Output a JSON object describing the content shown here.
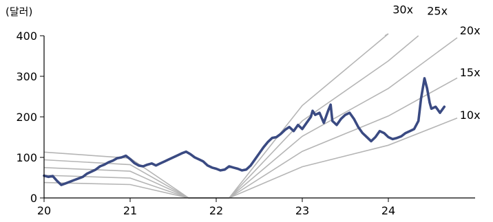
{
  "chart_data": {
    "type": "line",
    "unit_label": "(달러)",
    "xlim": [
      2020,
      2024.75
    ],
    "ylim": [
      0,
      400
    ],
    "x_ticks": [
      {
        "value": 2020,
        "label": "20"
      },
      {
        "value": 2021,
        "label": "21"
      },
      {
        "value": 2022,
        "label": "22"
      },
      {
        "value": 2023,
        "label": "23"
      },
      {
        "value": 2024,
        "label": "24"
      }
    ],
    "y_ticks": [
      0,
      100,
      200,
      300,
      400
    ],
    "colors": {
      "price": "#3a4a82",
      "band": "#b5b5b5",
      "axis": "#000000"
    },
    "bands": [
      {
        "name": "10x",
        "points": [
          [
            2020,
            38
          ],
          [
            2021,
            33
          ],
          [
            2021.68,
            0
          ],
          [
            2022.15,
            0
          ],
          [
            2023,
            77
          ],
          [
            2024,
            130
          ],
          [
            2024.8,
            197
          ]
        ]
      },
      {
        "name": "15x",
        "points": [
          [
            2020,
            56
          ],
          [
            2021,
            49
          ],
          [
            2021.68,
            0
          ],
          [
            2022.15,
            0
          ],
          [
            2023,
            115
          ],
          [
            2024,
            202
          ],
          [
            2024.8,
            296
          ]
        ]
      },
      {
        "name": "20x",
        "points": [
          [
            2020,
            75
          ],
          [
            2021,
            66
          ],
          [
            2021.68,
            0
          ],
          [
            2022.15,
            0
          ],
          [
            2023,
            152
          ],
          [
            2024,
            270
          ],
          [
            2024.8,
            395
          ]
        ]
      },
      {
        "name": "25x",
        "points": [
          [
            2020,
            94
          ],
          [
            2021,
            82
          ],
          [
            2021.68,
            0
          ],
          [
            2022.15,
            0
          ],
          [
            2023,
            190
          ],
          [
            2024,
            338
          ],
          [
            2024.35,
            400
          ]
        ]
      },
      {
        "name": "30x",
        "points": [
          [
            2020,
            113
          ],
          [
            2021,
            98
          ],
          [
            2021.68,
            0
          ],
          [
            2022.15,
            0
          ],
          [
            2023,
            228
          ],
          [
            2024,
            405
          ],
          [
            2023.96,
            400
          ]
        ]
      }
    ],
    "band_labels": [
      {
        "text": "30x",
        "x": 2024.05,
        "y": 455
      },
      {
        "text": "25x",
        "x": 2024.45,
        "y": 452
      },
      {
        "text": "20x",
        "x": 2024.83,
        "y": 403
      },
      {
        "text": "15x",
        "x": 2024.83,
        "y": 300
      },
      {
        "text": "10x",
        "x": 2024.83,
        "y": 195
      }
    ],
    "series": [
      {
        "name": "price",
        "x": [
          2020.0,
          2020.05,
          2020.1,
          2020.15,
          2020.2,
          2020.25,
          2020.3,
          2020.35,
          2020.4,
          2020.45,
          2020.5,
          2020.55,
          2020.6,
          2020.65,
          2020.7,
          2020.75,
          2020.8,
          2020.85,
          2020.9,
          2020.95,
          2021.0,
          2021.05,
          2021.1,
          2021.15,
          2021.2,
          2021.25,
          2021.3,
          2021.35,
          2021.4,
          2021.45,
          2021.5,
          2021.55,
          2021.6,
          2021.65,
          2021.7,
          2021.75,
          2021.8,
          2021.85,
          2021.9,
          2021.95,
          2022.0,
          2022.05,
          2022.1,
          2022.15,
          2022.2,
          2022.25,
          2022.3,
          2022.35,
          2022.4,
          2022.45,
          2022.5,
          2022.55,
          2022.6,
          2022.65,
          2022.7,
          2022.75,
          2022.8,
          2022.85,
          2022.9,
          2022.95,
          2023.0,
          2023.05,
          2023.1,
          2023.12,
          2023.15,
          2023.2,
          2023.25,
          2023.3,
          2023.33,
          2023.35,
          2023.4,
          2023.45,
          2023.5,
          2023.55,
          2023.6,
          2023.65,
          2023.7,
          2023.75,
          2023.8,
          2023.85,
          2023.9,
          2023.95,
          2024.0,
          2024.05,
          2024.1,
          2024.15,
          2024.2,
          2024.25,
          2024.3,
          2024.35,
          2024.38,
          2024.42,
          2024.45,
          2024.48,
          2024.5,
          2024.55,
          2024.6,
          2024.65
        ],
        "y": [
          55,
          52,
          54,
          42,
          32,
          36,
          40,
          44,
          48,
          52,
          60,
          65,
          70,
          78,
          82,
          88,
          92,
          98,
          100,
          104,
          96,
          86,
          80,
          78,
          82,
          85,
          80,
          85,
          90,
          95,
          100,
          105,
          110,
          114,
          108,
          100,
          95,
          90,
          80,
          75,
          72,
          68,
          70,
          78,
          75,
          72,
          68,
          70,
          80,
          95,
          110,
          125,
          138,
          148,
          150,
          158,
          168,
          175,
          165,
          180,
          170,
          185,
          200,
          215,
          205,
          210,
          185,
          215,
          230,
          190,
          180,
          195,
          205,
          210,
          195,
          175,
          160,
          150,
          140,
          150,
          165,
          160,
          150,
          145,
          148,
          152,
          160,
          165,
          170,
          190,
          245,
          295,
          270,
          235,
          220,
          225,
          210,
          225
        ]
      }
    ]
  }
}
